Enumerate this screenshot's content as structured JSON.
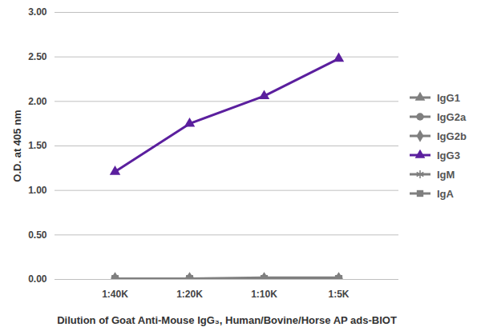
{
  "chart_data": {
    "type": "line",
    "x_label": "Dilution of Goat Anti-Mouse IgG₃, Human/Bovine/Horse AP ads-BIOT",
    "y_label": "O.D. at 405 nm",
    "categories": [
      "1:40K",
      "1:20K",
      "1:10K",
      "1:5K"
    ],
    "series": [
      {
        "name": "IgG1",
        "color": "#7f7f7f",
        "marker": "triangle",
        "values": [
          0.01,
          0.01,
          0.01,
          0.01
        ]
      },
      {
        "name": "IgG2a",
        "color": "#7f7f7f",
        "marker": "circle",
        "values": [
          0.01,
          0.01,
          0.01,
          0.01
        ]
      },
      {
        "name": "IgG2b",
        "color": "#7f7f7f",
        "marker": "diamond",
        "values": [
          0.01,
          0.01,
          0.01,
          0.01
        ]
      },
      {
        "name": "IgG3",
        "color": "#5b1f9e",
        "marker": "triangle",
        "values": [
          1.21,
          1.75,
          2.06,
          2.48
        ]
      },
      {
        "name": "IgM",
        "color": "#7f7f7f",
        "marker": "asterisk",
        "values": [
          0.01,
          0.01,
          0.02,
          0.02
        ]
      },
      {
        "name": "IgA",
        "color": "#7f7f7f",
        "marker": "square",
        "values": [
          0.01,
          0.01,
          0.01,
          0.01
        ]
      }
    ],
    "ylim": [
      0,
      3
    ],
    "yticks": [
      {
        "value": 0,
        "label": "0.00"
      },
      {
        "value": 0.5,
        "label": "0.50"
      },
      {
        "value": 1,
        "label": "1.00"
      },
      {
        "value": 1.5,
        "label": "1.50"
      },
      {
        "value": 2,
        "label": "2.00"
      },
      {
        "value": 2.5,
        "label": "2.50"
      },
      {
        "value": 3,
        "label": "3.00"
      }
    ],
    "grid": true,
    "legend": "right"
  }
}
